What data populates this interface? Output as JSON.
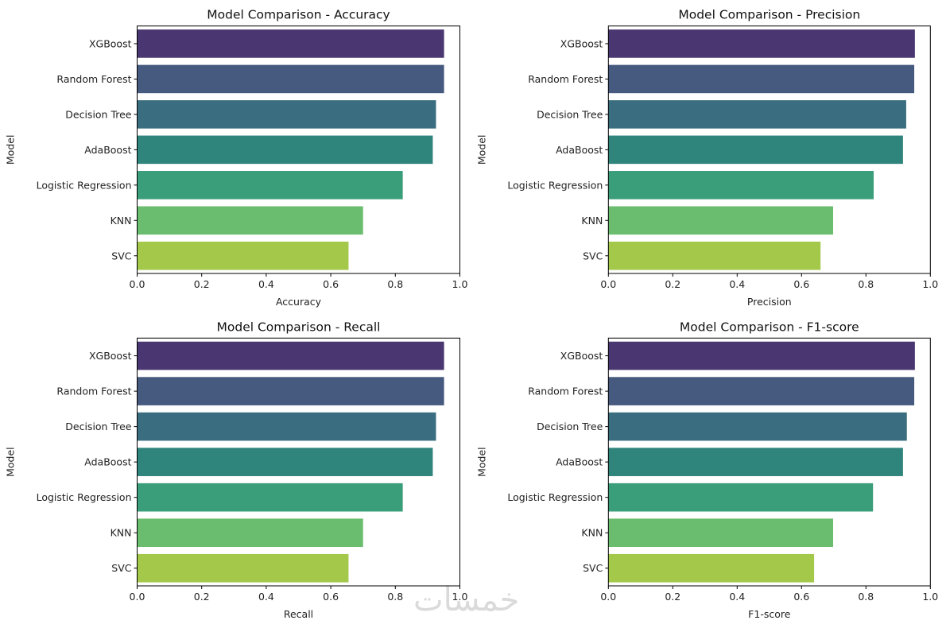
{
  "figure": {
    "watermark": "خمسات"
  },
  "chart_data": [
    {
      "type": "bar",
      "orientation": "horizontal",
      "title": "Model Comparison - Accuracy",
      "xlabel": "Accuracy",
      "ylabel": "Model",
      "xlim": [
        0,
        1.0
      ],
      "xticks": [
        "0.0",
        "0.2",
        "0.4",
        "0.6",
        "0.8",
        "1.0"
      ],
      "grid": false,
      "categories": [
        "XGBoost",
        "Random Forest",
        "Decision Tree",
        "AdaBoost",
        "Logistic Regression",
        "KNN",
        "SVC"
      ],
      "values": [
        0.951,
        0.951,
        0.926,
        0.916,
        0.823,
        0.7,
        0.655
      ],
      "colors": [
        "#4a3670",
        "#46597f",
        "#3a6d80",
        "#2f847c",
        "#3a9e7a",
        "#6abd6e",
        "#a3c84a"
      ]
    },
    {
      "type": "bar",
      "orientation": "horizontal",
      "title": "Model Comparison - Precision",
      "xlabel": "Precision",
      "ylabel": "Model",
      "xlim": [
        0,
        1.0
      ],
      "xticks": [
        "0.0",
        "0.2",
        "0.4",
        "0.6",
        "0.8",
        "1.0"
      ],
      "grid": false,
      "categories": [
        "XGBoost",
        "Random Forest",
        "Decision Tree",
        "AdaBoost",
        "Logistic Regression",
        "KNN",
        "SVC"
      ],
      "values": [
        0.952,
        0.95,
        0.925,
        0.915,
        0.824,
        0.698,
        0.659
      ],
      "colors": [
        "#4a3670",
        "#46597f",
        "#3a6d80",
        "#2f847c",
        "#3a9e7a",
        "#6abd6e",
        "#a3c84a"
      ]
    },
    {
      "type": "bar",
      "orientation": "horizontal",
      "title": "Model Comparison - Recall",
      "xlabel": "Recall",
      "ylabel": "Model",
      "xlim": [
        0,
        1.0
      ],
      "xticks": [
        "0.0",
        "0.2",
        "0.4",
        "0.6",
        "0.8",
        "1.0"
      ],
      "grid": false,
      "categories": [
        "XGBoost",
        "Random Forest",
        "Decision Tree",
        "AdaBoost",
        "Logistic Regression",
        "KNN",
        "SVC"
      ],
      "values": [
        0.951,
        0.951,
        0.926,
        0.916,
        0.823,
        0.7,
        0.655
      ],
      "colors": [
        "#4a3670",
        "#46597f",
        "#3a6d80",
        "#2f847c",
        "#3a9e7a",
        "#6abd6e",
        "#a3c84a"
      ]
    },
    {
      "type": "bar",
      "orientation": "horizontal",
      "title": "Model Comparison - F1-score",
      "xlabel": "F1-score",
      "ylabel": "Model",
      "xlim": [
        0,
        1.0
      ],
      "xticks": [
        "0.0",
        "0.2",
        "0.4",
        "0.6",
        "0.8",
        "1.0"
      ],
      "grid": false,
      "categories": [
        "XGBoost",
        "Random Forest",
        "Decision Tree",
        "AdaBoost",
        "Logistic Regression",
        "KNN",
        "SVC"
      ],
      "values": [
        0.952,
        0.95,
        0.927,
        0.915,
        0.822,
        0.698,
        0.639
      ],
      "colors": [
        "#4a3670",
        "#46597f",
        "#3a6d80",
        "#2f847c",
        "#3a9e7a",
        "#6abd6e",
        "#a3c84a"
      ]
    }
  ]
}
